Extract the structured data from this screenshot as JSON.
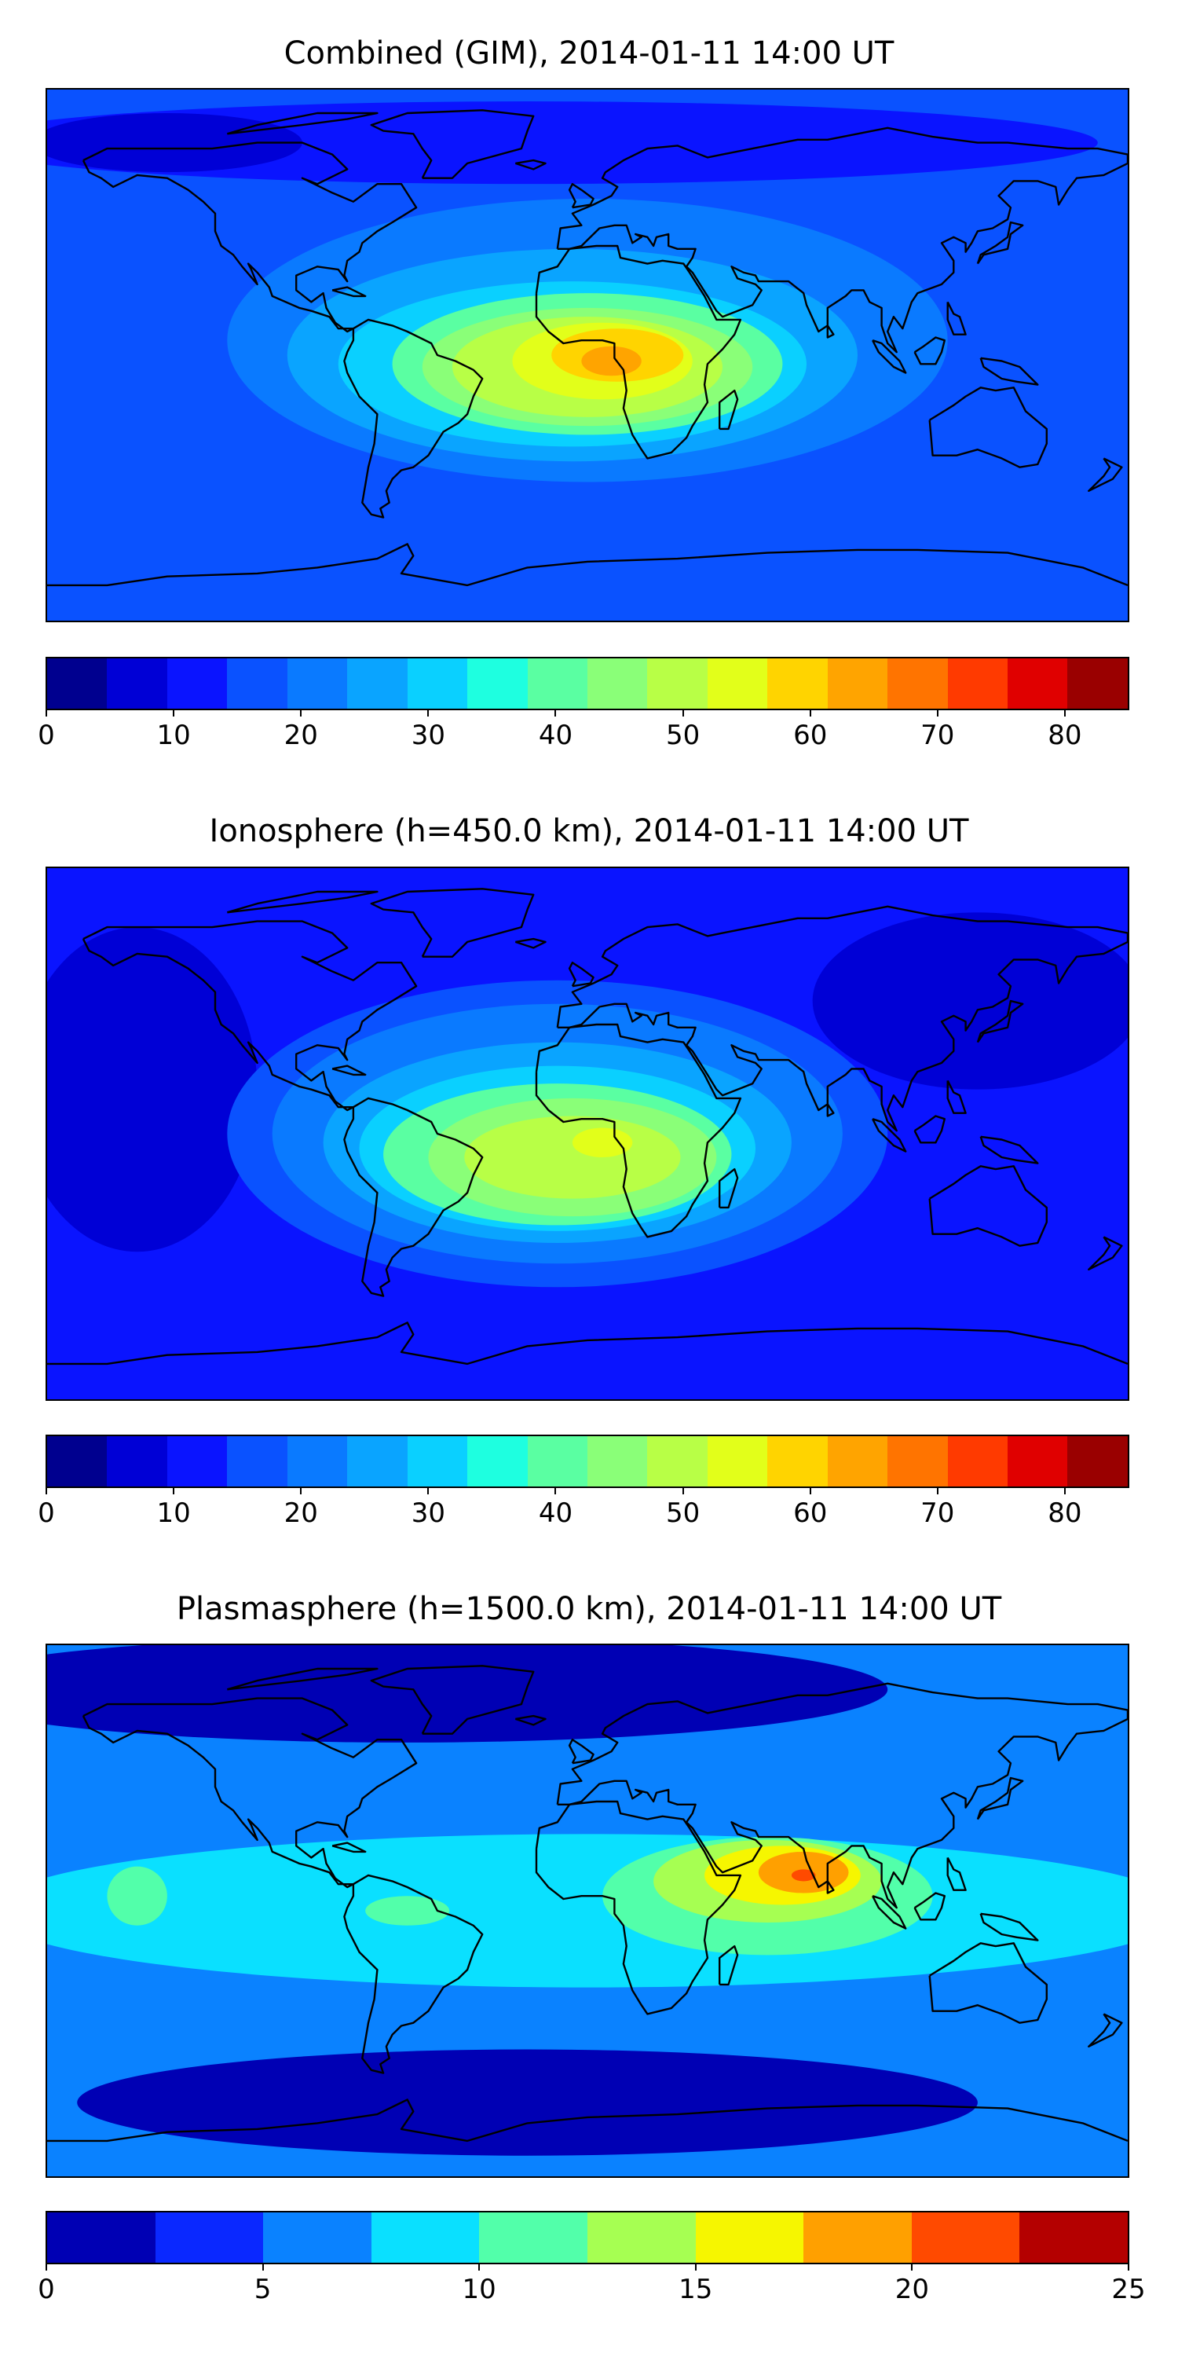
{
  "panels": [
    {
      "title": "Combined (GIM), 2014-01-11 14:00 UT",
      "colorbar": {
        "levels": [
          0,
          5,
          10,
          15,
          20,
          25,
          30,
          35,
          40,
          45,
          50,
          55,
          60,
          65,
          70,
          75,
          80,
          85
        ],
        "colors": [
          "#00008f",
          "#0000d6",
          "#0a14ff",
          "#0a52ff",
          "#0a7aff",
          "#0aa4ff",
          "#0ad0ff",
          "#1effe0",
          "#5affa2",
          "#8aff78",
          "#b8ff46",
          "#e2ff1a",
          "#ffd400",
          "#ffa400",
          "#ff7400",
          "#ff3a00",
          "#e00000",
          "#9a0000"
        ],
        "tick_values": [
          0,
          10,
          20,
          30,
          40,
          50,
          60,
          70,
          80
        ],
        "tick_labels": [
          "0",
          "10",
          "20",
          "30",
          "40",
          "50",
          "60",
          "70",
          "80"
        ]
      },
      "field": {
        "background": "#0a52ff",
        "blobs": [
          {
            "value": 10,
            "lon": -20,
            "lat": 72,
            "rx": 190,
            "ry": 14,
            "color": "#0a14ff"
          },
          {
            "value": 5,
            "lon": -140,
            "lat": 72,
            "rx": 45,
            "ry": 10,
            "color": "#0000d6"
          },
          {
            "value": 25,
            "lon": 0,
            "lat": 5,
            "rx": 120,
            "ry": 48,
            "color": "#0a7aff"
          },
          {
            "value": 30,
            "lon": -5,
            "lat": 0,
            "rx": 95,
            "ry": 36,
            "color": "#0aa4ff"
          },
          {
            "value": 35,
            "lon": -5,
            "lat": -3,
            "rx": 78,
            "ry": 28,
            "color": "#0ad0ff"
          },
          {
            "value": 40,
            "lon": 0,
            "lat": -3,
            "rx": 65,
            "ry": 24,
            "color": "#5affa2"
          },
          {
            "value": 45,
            "lon": 0,
            "lat": -4,
            "rx": 55,
            "ry": 20,
            "color": "#8aff78"
          },
          {
            "value": 50,
            "lon": 0,
            "lat": -4,
            "rx": 45,
            "ry": 17,
            "color": "#b8ff46"
          },
          {
            "value": 55,
            "lon": 5,
            "lat": -2,
            "rx": 30,
            "ry": 13,
            "color": "#e2ff1a"
          },
          {
            "value": 60,
            "lon": 10,
            "lat": 0,
            "rx": 22,
            "ry": 9,
            "color": "#ffd400"
          },
          {
            "value": 65,
            "lon": 8,
            "lat": -2,
            "rx": 10,
            "ry": 5,
            "color": "#ffa400"
          }
        ]
      }
    },
    {
      "title": "Ionosphere  (h=450.0 km), 2014-01-11 14:00 UT",
      "colorbar": {
        "levels": [
          0,
          5,
          10,
          15,
          20,
          25,
          30,
          35,
          40,
          45,
          50,
          55,
          60,
          65,
          70,
          75,
          80,
          85
        ],
        "colors": [
          "#00008f",
          "#0000d6",
          "#0a14ff",
          "#0a52ff",
          "#0a7aff",
          "#0aa4ff",
          "#0ad0ff",
          "#1effe0",
          "#5affa2",
          "#8aff78",
          "#b8ff46",
          "#e2ff1a",
          "#ffd400",
          "#ffa400",
          "#ff7400",
          "#ff3a00",
          "#e00000",
          "#9a0000"
        ],
        "tick_values": [
          0,
          10,
          20,
          30,
          40,
          50,
          60,
          70,
          80
        ],
        "tick_labels": [
          "0",
          "10",
          "20",
          "30",
          "40",
          "50",
          "60",
          "70",
          "80"
        ]
      },
      "field": {
        "background": "#0a14ff",
        "blobs": [
          {
            "value": 5,
            "lon": -150,
            "lat": 15,
            "rx": 40,
            "ry": 55,
            "color": "#0000d6"
          },
          {
            "value": 5,
            "lon": 130,
            "lat": 45,
            "rx": 55,
            "ry": 30,
            "color": "#0000d6"
          },
          {
            "value": 15,
            "lon": -10,
            "lat": 0,
            "rx": 110,
            "ry": 52,
            "color": "#0a52ff"
          },
          {
            "value": 20,
            "lon": -10,
            "lat": 0,
            "rx": 95,
            "ry": 44,
            "color": "#0a7aff"
          },
          {
            "value": 25,
            "lon": -10,
            "lat": -3,
            "rx": 78,
            "ry": 34,
            "color": "#0aa4ff"
          },
          {
            "value": 30,
            "lon": -10,
            "lat": -5,
            "rx": 66,
            "ry": 28,
            "color": "#0ad0ff"
          },
          {
            "value": 35,
            "lon": -10,
            "lat": -7,
            "rx": 58,
            "ry": 24,
            "color": "#5affa2"
          },
          {
            "value": 40,
            "lon": -5,
            "lat": -8,
            "rx": 48,
            "ry": 20,
            "color": "#8aff78"
          },
          {
            "value": 45,
            "lon": -5,
            "lat": -8,
            "rx": 36,
            "ry": 14,
            "color": "#b8ff46"
          },
          {
            "value": 50,
            "lon": 5,
            "lat": -3,
            "rx": 10,
            "ry": 5,
            "color": "#e2ff1a"
          }
        ]
      }
    },
    {
      "title": "Plasmasphere (h=1500.0 km), 2014-01-11 14:00 UT",
      "colorbar": {
        "levels": [
          0,
          2.5,
          5,
          7.5,
          10,
          12.5,
          15,
          17.5,
          20,
          22.5,
          25
        ],
        "colors": [
          "#0000b4",
          "#0a28ff",
          "#0a82ff",
          "#0ae0ff",
          "#52ffaa",
          "#a6ff52",
          "#f6f600",
          "#ffa000",
          "#ff4a00",
          "#b40000"
        ],
        "tick_values": [
          0,
          5,
          10,
          15,
          20,
          25
        ],
        "tick_labels": [
          "0",
          "5",
          "10",
          "15",
          "20",
          "25"
        ]
      },
      "field": {
        "background": "#0a82ff",
        "blobs": [
          {
            "value": 2.5,
            "lon": -60,
            "lat": 75,
            "rx": 160,
            "ry": 18,
            "color": "#0000b4"
          },
          {
            "value": 2.5,
            "lon": -20,
            "lat": -65,
            "rx": 150,
            "ry": 18,
            "color": "#0000b4"
          },
          {
            "value": 7.5,
            "lon": 0,
            "lat": 0,
            "rx": 200,
            "ry": 26,
            "color": "#0ae0ff"
          },
          {
            "value": 10,
            "lon": 60,
            "lat": 5,
            "rx": 55,
            "ry": 20,
            "color": "#52ffaa"
          },
          {
            "value": 10,
            "lon": -150,
            "lat": 5,
            "rx": 10,
            "ry": 10,
            "color": "#52ffaa"
          },
          {
            "value": 10,
            "lon": -60,
            "lat": 0,
            "rx": 14,
            "ry": 5,
            "color": "#52ffaa"
          },
          {
            "value": 12.5,
            "lon": 60,
            "lat": 10,
            "rx": 38,
            "ry": 14,
            "color": "#a6ff52"
          },
          {
            "value": 15,
            "lon": 65,
            "lat": 12,
            "rx": 26,
            "ry": 10,
            "color": "#f6f600"
          },
          {
            "value": 17.5,
            "lon": 72,
            "lat": 13,
            "rx": 15,
            "ry": 7,
            "color": "#ffa000"
          },
          {
            "value": 20,
            "lon": 72,
            "lat": 12,
            "rx": 4,
            "ry": 2,
            "color": "#ff4a00"
          }
        ]
      }
    }
  ],
  "coastline_color": "#000000"
}
